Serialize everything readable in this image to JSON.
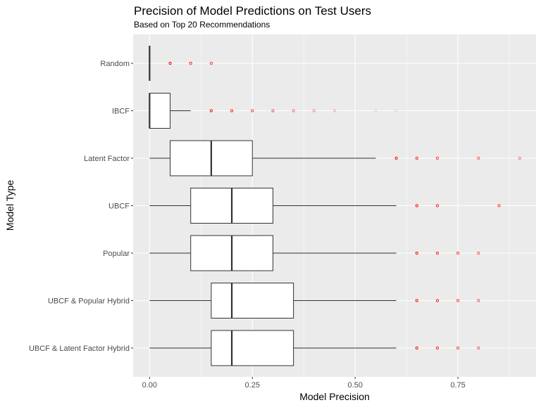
{
  "chart_data": {
    "type": "boxplot",
    "orientation": "horizontal",
    "title": "Precision of Model Predictions on Test Users",
    "subtitle": "Based on Top 20 Recommendations",
    "xlabel": "Model Precision",
    "ylabel": "Model Type",
    "xlim": [
      -0.04,
      0.94
    ],
    "xticks": [
      0.0,
      0.25,
      0.5,
      0.75
    ],
    "xtick_labels": [
      "0.00",
      "0.25",
      "0.50",
      "0.75"
    ],
    "grid": true,
    "colors": {
      "panel": "#ebebeb",
      "grid": "#ffffff",
      "box_fill": "#ffffff",
      "box_line": "#333333",
      "outlier": "#ff0000"
    },
    "categories": [
      "Random",
      "IBCF",
      "Latent Factor",
      "UBCF",
      "Popular",
      "UBCF & Popular Hybrid",
      "UBCF & Latent Factor Hybrid"
    ],
    "boxes": [
      {
        "label": "Random",
        "whisker_low": 0.0,
        "q1": 0.0,
        "median": 0.0,
        "q3": 0.0,
        "whisker_high": 0.0,
        "outliers": [
          0.05,
          0.1,
          0.15
        ]
      },
      {
        "label": "IBCF",
        "whisker_low": 0.0,
        "q1": 0.0,
        "median": 0.0,
        "q3": 0.05,
        "whisker_high": 0.1,
        "outliers": [
          0.15,
          0.2,
          0.25,
          0.3,
          0.35,
          0.4,
          0.45,
          0.55,
          0.6
        ]
      },
      {
        "label": "Latent Factor",
        "whisker_low": 0.0,
        "q1": 0.05,
        "median": 0.15,
        "q3": 0.25,
        "whisker_high": 0.55,
        "outliers": [
          0.6,
          0.65,
          0.7,
          0.8,
          0.9
        ]
      },
      {
        "label": "UBCF",
        "whisker_low": 0.0,
        "q1": 0.1,
        "median": 0.2,
        "q3": 0.3,
        "whisker_high": 0.6,
        "outliers": [
          0.65,
          0.7,
          0.85
        ]
      },
      {
        "label": "Popular",
        "whisker_low": 0.0,
        "q1": 0.1,
        "median": 0.2,
        "q3": 0.3,
        "whisker_high": 0.6,
        "outliers": [
          0.65,
          0.7,
          0.75,
          0.8
        ]
      },
      {
        "label": "UBCF & Popular Hybrid",
        "whisker_low": 0.0,
        "q1": 0.15,
        "median": 0.2,
        "q3": 0.35,
        "whisker_high": 0.6,
        "outliers": [
          0.65,
          0.7,
          0.75,
          0.8
        ]
      },
      {
        "label": "UBCF & Latent Factor Hybrid",
        "whisker_low": 0.0,
        "q1": 0.15,
        "median": 0.2,
        "q3": 0.35,
        "whisker_high": 0.6,
        "outliers": [
          0.65,
          0.7,
          0.75,
          0.8
        ]
      }
    ]
  }
}
